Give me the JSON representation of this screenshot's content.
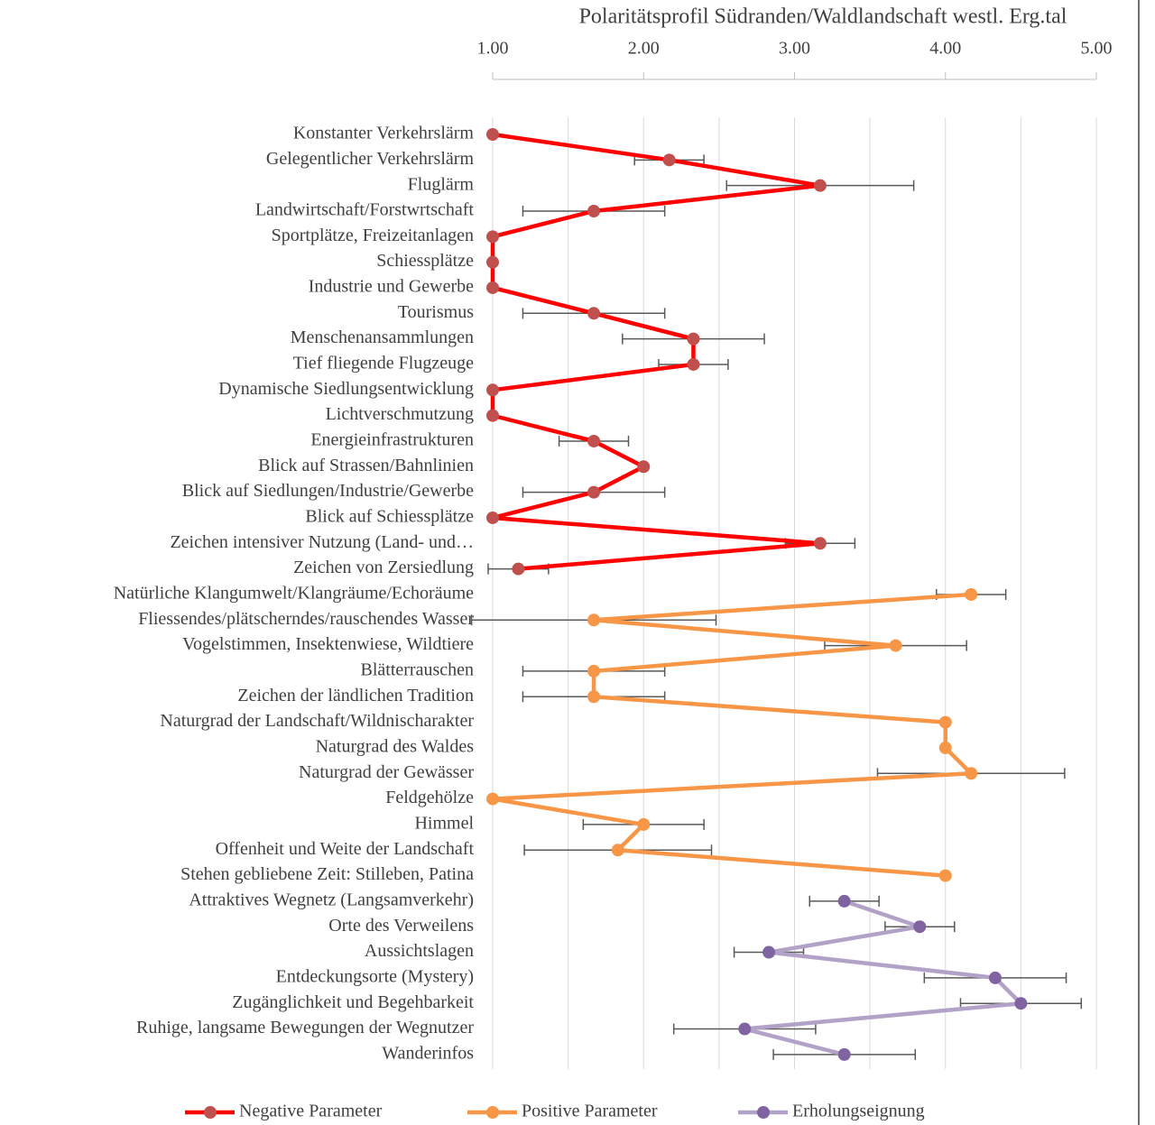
{
  "chart_data": {
    "type": "line",
    "title": "Polaritätsprofil Südranden/Waldlandschaft westl. Erg.tal",
    "categories": [
      "Konstanter Verkehrslärm",
      "Gelegentlicher Verkehrslärm",
      "Fluglärm",
      "Landwirtschaft/Forstwrtschaft",
      "Sportplätze, Freizeitanlagen",
      "Schiessplätze",
      "Industrie und Gewerbe",
      "Tourismus",
      "Menschenansammlungen",
      "Tief fliegende Flugzeuge",
      "Dynamische Siedlungsentwicklung",
      "Lichtverschmutzung",
      "Energieinfrastrukturen",
      "Blick auf Strassen/Bahnlinien",
      "Blick auf Siedlungen/Industrie/Gewerbe",
      "Blick auf Schiessplätze",
      "Zeichen intensiver Nutzung (Land- und…",
      "Zeichen von Zersiedlung",
      "Natürliche Klangumwelt/Klangräume/Echoräume",
      "Fliessendes/plätscherndes/rauschendes Wasser",
      "Vogelstimmen, Insektenwiese, Wildtiere",
      "Blätterrauschen",
      "Zeichen der ländlichen Tradition",
      "Naturgrad der Landschaft/Wildnischarakter",
      "Naturgrad des Waldes",
      "Naturgrad der Gewässer",
      "Feldgehölze",
      "Himmel",
      "Offenheit und Weite der Landschaft",
      "Stehen gebliebene Zeit: Stilleben, Patina",
      "Attraktives Wegnetz (Langsamverkehr)",
      "Orte des Verweilens",
      "Aussichtslagen",
      "Entdeckungsorte (Mystery)",
      "Zugänglichkeit und Begehbarkeit",
      "Ruhige, langsame Bewegungen der Wegnutzer",
      "Wanderinfos"
    ],
    "series": [
      {
        "name": "Negative  Parameter",
        "color": "#ff0000",
        "marker_color": "#c0504d",
        "values": [
          1.0,
          2.17,
          3.17,
          1.67,
          1.0,
          1.0,
          1.0,
          1.67,
          2.33,
          2.33,
          1.0,
          1.0,
          1.67,
          2.0,
          1.67,
          1.0,
          3.17,
          1.17,
          null,
          null,
          null,
          null,
          null,
          null,
          null,
          null,
          null,
          null,
          null,
          null,
          null,
          null,
          null,
          null,
          null,
          null,
          null
        ],
        "errors": [
          null,
          0.23,
          0.62,
          0.47,
          null,
          null,
          null,
          0.47,
          0.47,
          0.23,
          null,
          null,
          0.23,
          null,
          0.47,
          null,
          0.23,
          0.2,
          null,
          null,
          null,
          null,
          null,
          null,
          null,
          null,
          null,
          null,
          null,
          null,
          null,
          null,
          null,
          null,
          null,
          null,
          null
        ]
      },
      {
        "name": "Positive Parameter",
        "color": "#f79646",
        "marker_color": "#f79646",
        "values": [
          null,
          null,
          null,
          null,
          null,
          null,
          null,
          null,
          null,
          null,
          null,
          null,
          null,
          null,
          null,
          null,
          null,
          null,
          4.17,
          1.67,
          3.67,
          1.67,
          1.67,
          4.0,
          4.0,
          4.17,
          1.0,
          2.0,
          1.83,
          4.0,
          null,
          null,
          null,
          null,
          null,
          null,
          null
        ],
        "errors": [
          null,
          null,
          null,
          null,
          null,
          null,
          null,
          null,
          null,
          null,
          null,
          null,
          null,
          null,
          null,
          null,
          null,
          null,
          0.23,
          0.81,
          0.47,
          0.47,
          0.47,
          null,
          null,
          0.62,
          null,
          0.4,
          0.62,
          null,
          null,
          null,
          null,
          null,
          null,
          null,
          null
        ]
      },
      {
        "name": "Erholungseignung",
        "color": "#b3a2c7",
        "marker_color": "#8064a2",
        "values": [
          null,
          null,
          null,
          null,
          null,
          null,
          null,
          null,
          null,
          null,
          null,
          null,
          null,
          null,
          null,
          null,
          null,
          null,
          null,
          null,
          null,
          null,
          null,
          null,
          null,
          null,
          null,
          null,
          null,
          null,
          3.33,
          3.83,
          2.83,
          4.33,
          4.5,
          2.67,
          3.33
        ],
        "errors": [
          null,
          null,
          null,
          null,
          null,
          null,
          null,
          null,
          null,
          null,
          null,
          null,
          null,
          null,
          null,
          null,
          null,
          null,
          null,
          null,
          null,
          null,
          null,
          null,
          null,
          null,
          null,
          null,
          null,
          null,
          0.23,
          0.23,
          0.23,
          0.47,
          0.4,
          0.47,
          0.47
        ]
      }
    ],
    "xlim": [
      1,
      5
    ],
    "xticks": [
      {
        "value": 1,
        "label": "1.00"
      },
      {
        "value": 2,
        "label": "2.00"
      },
      {
        "value": 3,
        "label": "3.00"
      },
      {
        "value": 4,
        "label": "4.00"
      },
      {
        "value": 5,
        "label": "5.00"
      }
    ],
    "minor_xticks": [
      1.5,
      2.5,
      3.5,
      4.5
    ],
    "grid": true,
    "legend": "bottom"
  }
}
